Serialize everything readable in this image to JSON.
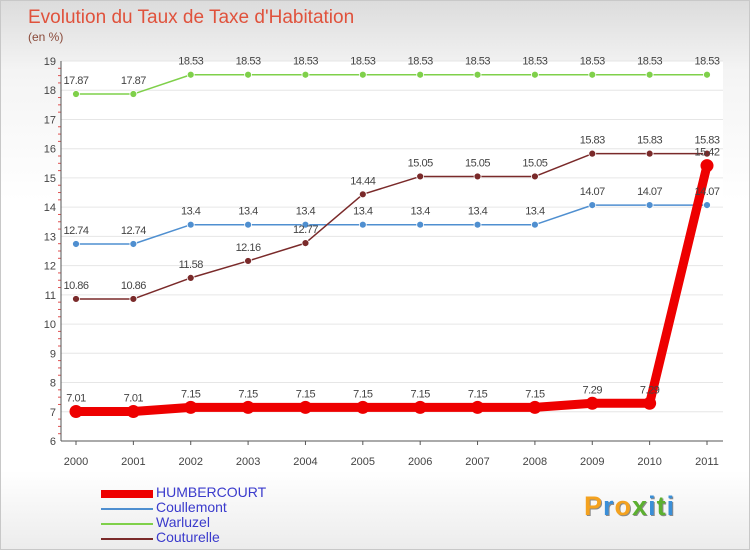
{
  "title": "Evolution du Taux de Taxe d'Habitation",
  "subtitle": "(en %)",
  "logo": {
    "text": "Proxiti",
    "colors": [
      "#f4a21f",
      "#3a8fd8",
      "#f4a21f",
      "#5cb030",
      "#3a8fd8",
      "#5cb030",
      "#3a8fd8"
    ]
  },
  "chart_data": {
    "type": "line",
    "x": [
      "2000",
      "2001",
      "2002",
      "2003",
      "2004",
      "2005",
      "2006",
      "2007",
      "2008",
      "2009",
      "2010",
      "2011"
    ],
    "ylim": [
      6,
      19
    ],
    "yticks": [
      "6",
      "7",
      "8",
      "9",
      "10",
      "11",
      "12",
      "13",
      "14",
      "15",
      "16",
      "17",
      "18",
      "19"
    ],
    "grid": true,
    "legend_position": "bottom-left",
    "series": [
      {
        "name": "HUMBERCOURT",
        "color": "#ee0000",
        "values": [
          7.01,
          7.01,
          7.15,
          7.15,
          7.15,
          7.15,
          7.15,
          7.15,
          7.15,
          7.29,
          7.29,
          15.42
        ],
        "labels": [
          "7.01",
          "7.01",
          "7.15",
          "7.15",
          "7.15",
          "7.15",
          "7.15",
          "7.15",
          "7.15",
          "7.29",
          "7.29",
          "15.42"
        ]
      },
      {
        "name": "Coullemont",
        "color": "#4f8fd0",
        "values": [
          12.74,
          12.74,
          13.4,
          13.4,
          13.4,
          13.4,
          13.4,
          13.4,
          13.4,
          14.07,
          14.07,
          14.07
        ],
        "labels": [
          "12.74",
          "12.74",
          "13.4",
          "13.4",
          "13.4",
          "13.4",
          "13.4",
          "13.4",
          "13.4",
          "14.07",
          "14.07",
          "14.07"
        ]
      },
      {
        "name": "Warluzel",
        "color": "#7fd04a",
        "values": [
          17.87,
          17.87,
          18.53,
          18.53,
          18.53,
          18.53,
          18.53,
          18.53,
          18.53,
          18.53,
          18.53,
          18.53
        ],
        "labels": [
          "17.87",
          "17.87",
          "18.53",
          "18.53",
          "18.53",
          "18.53",
          "18.53",
          "18.53",
          "18.53",
          "18.53",
          "18.53",
          "18.53"
        ]
      },
      {
        "name": "Couturelle",
        "color": "#7a2a2a",
        "values": [
          10.86,
          10.86,
          11.58,
          12.16,
          12.77,
          14.44,
          15.05,
          15.05,
          15.05,
          15.83,
          15.83,
          15.83
        ],
        "labels": [
          "10.86",
          "10.86",
          "11.58",
          "12.16",
          "12.77",
          "14.44",
          "15.05",
          "15.05",
          "15.05",
          "15.83",
          "15.83",
          "15.83"
        ]
      }
    ]
  }
}
